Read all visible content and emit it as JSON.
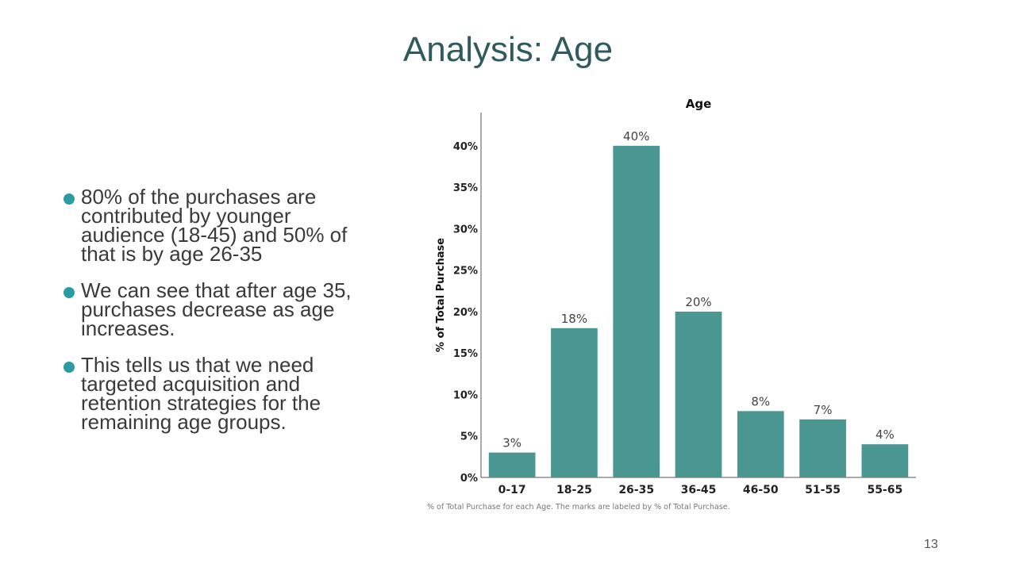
{
  "slide": {
    "title": "Analysis: Age",
    "page_number": "13"
  },
  "bullets": [
    "80% of the purchases are contributed by younger audience (18-45) and 50% of that is by age 26-35",
    "We can see that after age 35, purchases decrease as age increases.",
    "This tells us that we need targeted acquisition and retention strategies for the remaining age groups."
  ],
  "colors": {
    "bar": "#4a9690",
    "title": "#2f5b5e",
    "bullet_dot": "#2a9aa3"
  },
  "chart_data": {
    "type": "bar",
    "title": "Age",
    "ylabel": "% of Total Purchase",
    "xlabel": "",
    "categories": [
      "0-17",
      "18-25",
      "26-35",
      "36-45",
      "46-50",
      "51-55",
      "55-65"
    ],
    "values": [
      3,
      18,
      40,
      20,
      8,
      7,
      4
    ],
    "value_labels": [
      "3%",
      "18%",
      "40%",
      "20%",
      "8%",
      "7%",
      "4%"
    ],
    "ylim": [
      0,
      44
    ],
    "yticks": [
      0,
      5,
      10,
      15,
      20,
      25,
      30,
      35,
      40
    ],
    "ytick_labels": [
      "0%",
      "5%",
      "10%",
      "15%",
      "20%",
      "25%",
      "30%",
      "35%",
      "40%"
    ],
    "grid": false,
    "caption": "% of Total Purchase for each Age.  The marks are labeled by % of Total Purchase."
  }
}
